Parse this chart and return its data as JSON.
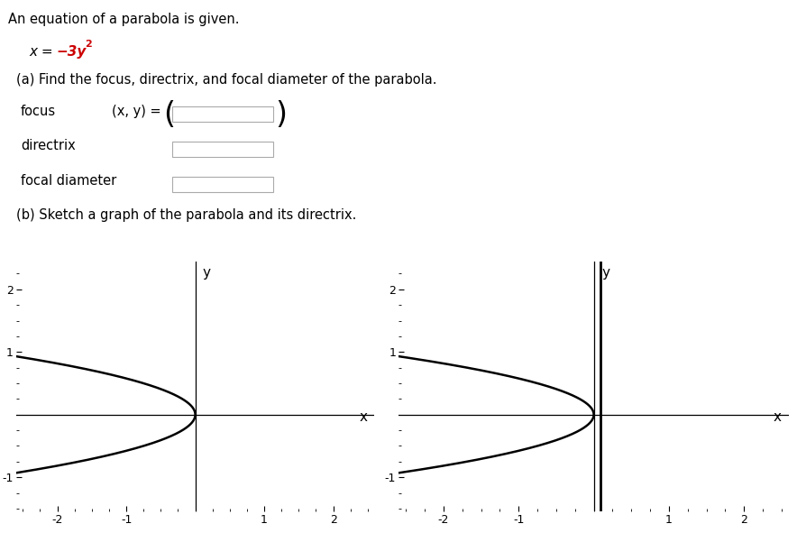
{
  "title_text": "An equation of a parabola is given.",
  "part_a_text": "(a) Find the focus, directrix, and focal diameter of the parabola.",
  "focus_label": "focus",
  "focus_xy_label": "(x, y) =",
  "directrix_label": "directrix",
  "focal_diameter_label": "focal diameter",
  "part_b_text": "(b) Sketch a graph of the parabola and its directrix.",
  "y_label": "y",
  "x_label": "x",
  "xlim": [
    -2.6,
    2.6
  ],
  "ylim": [
    -1.55,
    2.45
  ],
  "directrix_x": 0.0833333,
  "parabola_coeff": -3,
  "background_color": "#ffffff",
  "line_color": "#000000",
  "eq_red_color": "#cc0000",
  "tick_label_size": 9,
  "axis_label_size": 11
}
